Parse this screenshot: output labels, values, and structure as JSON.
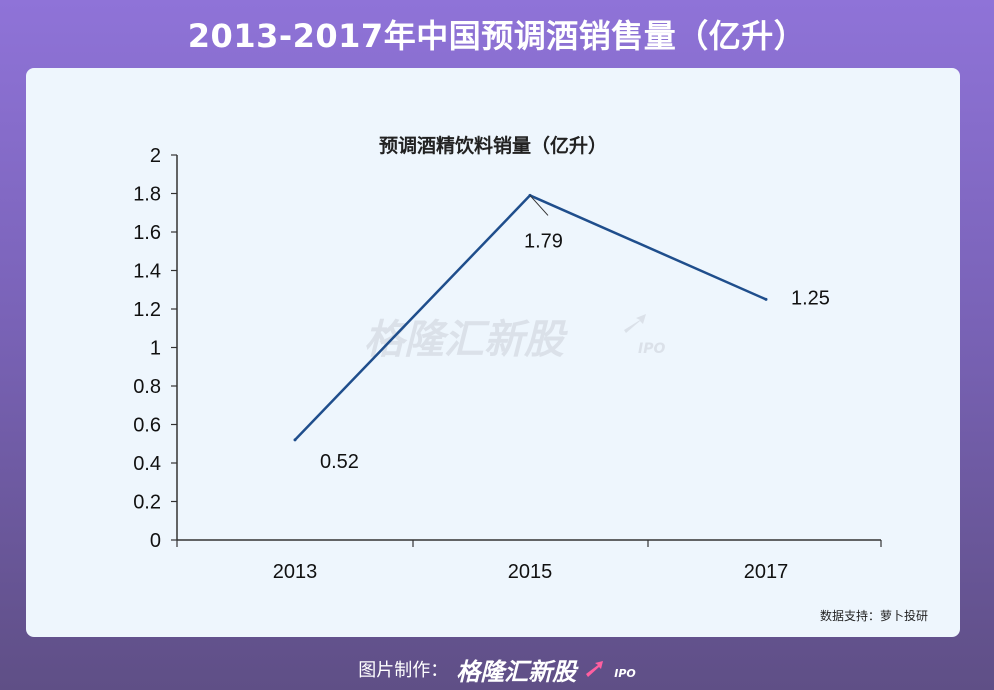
{
  "header": {
    "title": "2013-2017年中国预调酒销售量（亿升）"
  },
  "chart_data": {
    "type": "line",
    "title": "预调酒精饮料销量（亿升）",
    "categories": [
      "2013",
      "2015",
      "2017"
    ],
    "series": [
      {
        "values": [
          0.52,
          1.79,
          1.25
        ]
      }
    ],
    "data_labels": [
      "0.52",
      "1.79",
      "1.25"
    ],
    "ylim": [
      0,
      2
    ],
    "yticks": [
      "0",
      "0.2",
      "0.4",
      "0.6",
      "0.8",
      "1",
      "1.2",
      "1.4",
      "1.6",
      "1.8",
      "2"
    ],
    "line_color": "#1f4e8c",
    "grid": false
  },
  "watermark": {
    "brand": "格隆汇新股",
    "suffix": "IPO"
  },
  "source_note": "数据支持：萝卜投研",
  "footer": {
    "label": "图片制作：",
    "brand": "格隆汇新股",
    "suffix": "IPO"
  }
}
